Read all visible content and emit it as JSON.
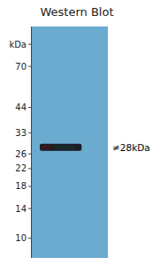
{
  "chart_data": {
    "type": "blot",
    "title": "Western Blot",
    "log": "y",
    "ylim": [
      8,
      110
    ],
    "yticks": [
      {
        "value": 90,
        "label": "kDa"
      },
      70,
      44,
      33,
      26,
      22,
      18,
      14,
      10
    ],
    "categories": [
      null
    ],
    "values": [
      28
    ],
    "color": "#1c1c2a",
    "annotations": [
      "≠28kDa"
    ],
    "tick_labels": "y"
  }
}
